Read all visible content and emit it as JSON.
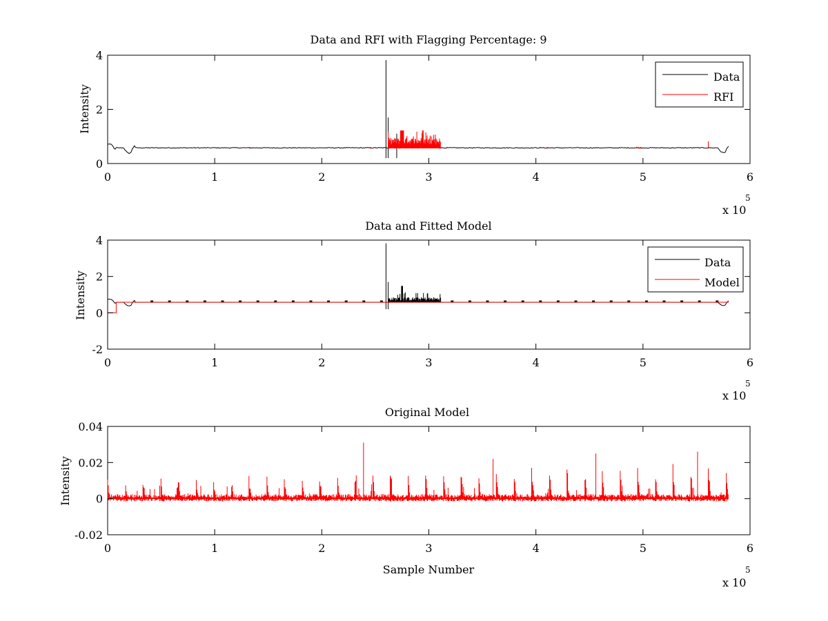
{
  "figure": {
    "background": "#ffffff"
  },
  "chart_data": [
    {
      "type": "line",
      "title": "Data and RFI with Flagging Percentage: 9",
      "xlabel": "",
      "ylabel": "Intensity",
      "xlim": [
        0,
        600000
      ],
      "ylim": [
        0,
        4
      ],
      "x_ticks": [
        0,
        1,
        2,
        3,
        4,
        5,
        6
      ],
      "y_ticks": [
        0,
        2,
        4
      ],
      "x_multiplier": {
        "base": "x 10",
        "exp": "5"
      },
      "legend": {
        "placement": "top-right",
        "entries": [
          {
            "label": "Data",
            "color": "#000000"
          },
          {
            "label": "RFI",
            "color": "#ff0000"
          }
        ]
      },
      "series": [
        {
          "name": "Data",
          "color": "#000000",
          "baseline": 0.58,
          "features": [
            {
              "x": 260000,
              "y": 3.82
            },
            {
              "x": 262000,
              "y": 1.7
            },
            {
              "x": 270000,
              "y": 1.1
            }
          ]
        },
        {
          "name": "RFI",
          "color": "#ff0000",
          "burst": {
            "x_range": [
              262000,
              311000
            ],
            "max": 1.22
          },
          "features": [
            {
              "x": 561000,
              "y": 0.82
            },
            {
              "x": 494000,
              "y": 0.62
            }
          ]
        }
      ]
    },
    {
      "type": "line",
      "title": "Data and Fitted Model",
      "xlabel": "",
      "ylabel": "Intensity",
      "xlim": [
        0,
        600000
      ],
      "ylim": [
        -2,
        4
      ],
      "x_ticks": [
        0,
        1,
        2,
        3,
        4,
        5,
        6
      ],
      "y_ticks": [
        -2,
        0,
        2,
        4
      ],
      "x_multiplier": {
        "base": "x 10",
        "exp": "5"
      },
      "legend": {
        "placement": "top-right",
        "entries": [
          {
            "label": "Data",
            "color": "#000000"
          },
          {
            "label": "Model",
            "color": "#ff0000"
          }
        ]
      },
      "series": [
        {
          "name": "Data",
          "color": "#000000",
          "baseline": 0.58,
          "features": [
            {
              "x": 260000,
              "y": 3.82
            },
            {
              "x": 262000,
              "y": 1.7
            }
          ]
        },
        {
          "name": "Model",
          "color": "#ff0000",
          "baseline": 0.58,
          "features": [
            {
              "x": 0,
              "y": 0.0
            },
            {
              "x": 8000,
              "y": 0.0
            }
          ]
        }
      ]
    },
    {
      "type": "line",
      "title": "Original Model",
      "xlabel": "Sample Number",
      "ylabel": "Intensity",
      "xlim": [
        0,
        600000
      ],
      "ylim": [
        -0.02,
        0.04
      ],
      "x_ticks": [
        0,
        1,
        2,
        3,
        4,
        5,
        6
      ],
      "y_ticks": [
        "-0.02",
        "0",
        "0.02",
        "0.04"
      ],
      "y_tick_values": [
        -0.02,
        0,
        0.02,
        0.04
      ],
      "x_multiplier": {
        "base": "x 10",
        "exp": "5"
      },
      "series": [
        {
          "color": "#ff0000",
          "x_range": [
            0,
            580000
          ],
          "features": [
            {
              "x": 239000,
              "y": 0.031
            },
            {
              "x": 456000,
              "y": 0.025
            },
            {
              "x": 551000,
              "y": 0.026
            },
            {
              "x": 360000,
              "y": 0.022
            }
          ]
        }
      ]
    }
  ]
}
